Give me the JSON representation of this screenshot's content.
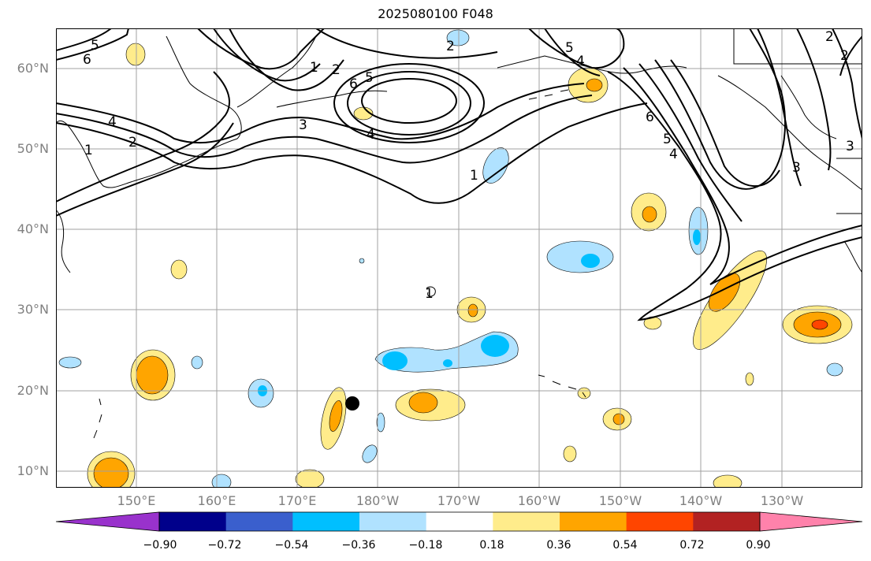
{
  "title": "2025080100 F048",
  "lat_labels": [
    "60°N",
    "50°N",
    "40°N",
    "30°N",
    "20°N",
    "10°N"
  ],
  "lon_labels": [
    "150°E",
    "160°E",
    "170°E",
    "180°W",
    "170°W",
    "160°W",
    "150°W",
    "140°W",
    "130°W"
  ],
  "colorbar": {
    "ticks": [
      "−0.90",
      "−0.72",
      "−0.54",
      "−0.36",
      "−0.18",
      "0.18",
      "0.36",
      "0.54",
      "0.72",
      "0.90"
    ],
    "colors": [
      "#9932cc",
      "#00008b",
      "#3a5fcd",
      "#00bfff",
      "#b0e2ff",
      "#ffffff",
      "#ffec8b",
      "#ffa500",
      "#ff4500",
      "#b22222",
      "#ff82ab"
    ]
  },
  "contour_labels": [
    "5",
    "6",
    "1",
    "2",
    "6",
    "5",
    "3",
    "4",
    "1",
    "2",
    "4",
    "1",
    "2",
    "5",
    "4",
    "6",
    "5",
    "4",
    "3",
    "2",
    "2",
    "3",
    "1"
  ],
  "marker": "black-dot"
}
